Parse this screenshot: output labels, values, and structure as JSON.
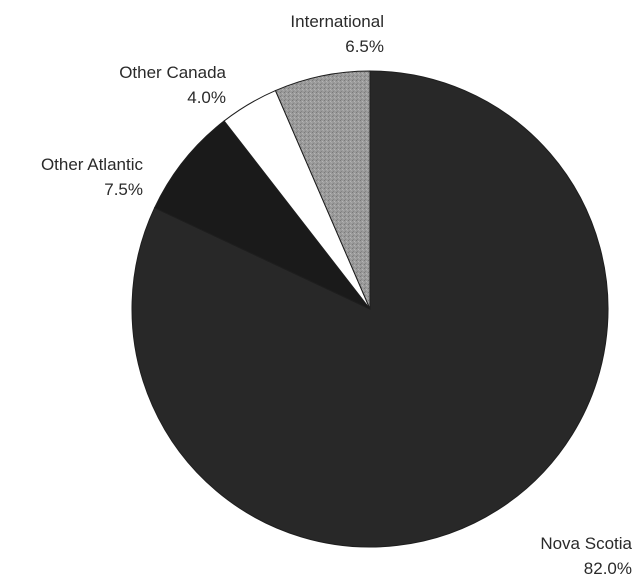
{
  "chart_data": {
    "type": "pie",
    "title": "",
    "start_angle_deg": 0,
    "direction": "clockwise",
    "slices": [
      {
        "name": "Nova Scotia",
        "value": 82.0,
        "label": "82.0%",
        "color": "#282828"
      },
      {
        "name": "Other Atlantic",
        "value": 7.5,
        "label": "7.5%",
        "color": "#1a1a1a"
      },
      {
        "name": "Other Canada",
        "value": 4.0,
        "label": "4.0%",
        "color": "#ffffff"
      },
      {
        "name": "International",
        "value": 6.5,
        "label": "6.5%",
        "color": "#9a9a9a"
      }
    ]
  }
}
